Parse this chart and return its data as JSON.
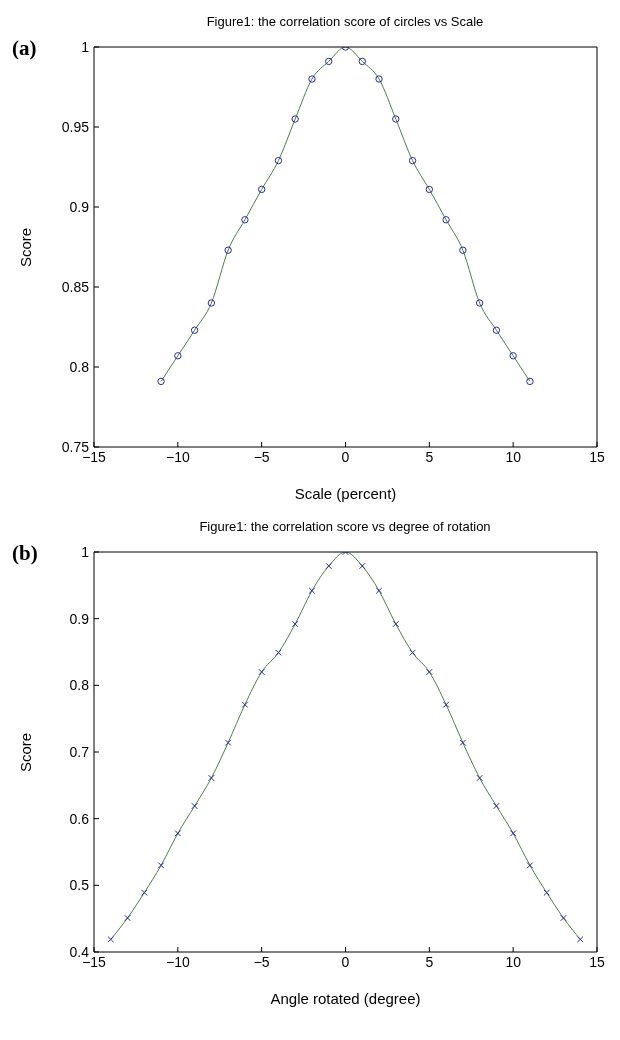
{
  "chart_data": [
    {
      "type": "line",
      "title": "Figure1: the correlation score of circles vs Scale",
      "xlabel": "Scale (percent)",
      "ylabel": "Score",
      "annotations": [
        "(a)"
      ],
      "x": [
        -11,
        -10,
        -9,
        -8,
        -7,
        -6,
        -5,
        -4,
        -3,
        -2,
        -1,
        0,
        1,
        2,
        3,
        4,
        5,
        6,
        7,
        8,
        9,
        10,
        11
      ],
      "series": [
        {
          "color": "#4a7f4a",
          "marker": "none",
          "values": [
            0.791,
            0.807,
            0.823,
            0.84,
            0.873,
            0.892,
            0.911,
            0.929,
            0.955,
            0.98,
            0.991,
            1.0,
            0.991,
            0.98,
            0.955,
            0.929,
            0.911,
            0.892,
            0.873,
            0.84,
            0.823,
            0.807,
            0.791
          ]
        },
        {
          "type": "scatter",
          "color": "#2a2aa0",
          "marker": "circle",
          "values": [
            0.791,
            0.807,
            0.823,
            0.84,
            0.873,
            0.892,
            0.911,
            0.929,
            0.955,
            0.98,
            0.991,
            1.0,
            0.991,
            0.98,
            0.955,
            0.929,
            0.911,
            0.892,
            0.873,
            0.84,
            0.823,
            0.807,
            0.791
          ]
        }
      ],
      "xlim": [
        -15,
        15
      ],
      "xticks": [
        -15,
        -10,
        -5,
        0,
        5,
        10,
        15
      ],
      "ylim": [
        0.75,
        1
      ],
      "yticks": [
        0.75,
        0.8,
        0.85,
        0.9,
        0.95,
        1
      ],
      "grid": false
    },
    {
      "type": "line",
      "title": "Figure1: the correlation score vs degree of rotation",
      "xlabel": "Angle rotated (degree)",
      "ylabel": "Score",
      "annotations": [
        "(b)"
      ],
      "x": [
        -14,
        -13,
        -12,
        -11,
        -10,
        -9,
        -8,
        -7,
        -6,
        -5,
        -4,
        -3,
        -2,
        -1,
        0,
        1,
        2,
        3,
        4,
        5,
        6,
        7,
        8,
        9,
        10,
        11,
        12,
        13,
        14
      ],
      "series": [
        {
          "color": "#4a7f4a",
          "marker": "none",
          "values": [
            0.419,
            0.451,
            0.489,
            0.53,
            0.578,
            0.619,
            0.661,
            0.714,
            0.771,
            0.82,
            0.849,
            0.892,
            0.942,
            0.979,
            1.0,
            0.979,
            0.942,
            0.892,
            0.849,
            0.82,
            0.771,
            0.714,
            0.661,
            0.619,
            0.578,
            0.53,
            0.489,
            0.451,
            0.419
          ]
        },
        {
          "type": "scatter",
          "color": "#2a2aa0",
          "marker": "cross",
          "values": [
            0.419,
            0.451,
            0.489,
            0.53,
            0.578,
            0.619,
            0.661,
            0.714,
            0.771,
            0.82,
            0.849,
            0.892,
            0.942,
            0.979,
            1.0,
            0.979,
            0.942,
            0.892,
            0.849,
            0.82,
            0.771,
            0.714,
            0.661,
            0.619,
            0.578,
            0.53,
            0.489,
            0.451,
            0.419
          ]
        }
      ],
      "xlim": [
        -15,
        15
      ],
      "xticks": [
        -15,
        -10,
        -5,
        0,
        5,
        10,
        15
      ],
      "ylim": [
        0.4,
        1
      ],
      "yticks": [
        0.4,
        0.5,
        0.6,
        0.7,
        0.8,
        0.9,
        1
      ],
      "grid": false
    }
  ]
}
